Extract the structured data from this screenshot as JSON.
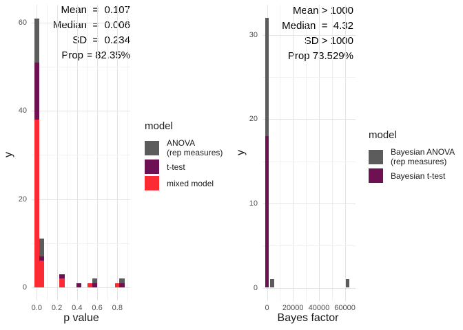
{
  "chart_data": [
    {
      "type": "bar",
      "subtype": "stacked-histogram",
      "title": "",
      "xlabel": "p value",
      "ylabel": "y",
      "grid": true,
      "legend_position": "right",
      "xlim": [
        -0.05,
        0.925
      ],
      "ylim": [
        -3.2,
        64
      ],
      "x_ticks": {
        "values": [
          0,
          0.2,
          0.4,
          0.6,
          0.8
        ],
        "labels": [
          "0.0",
          "0.2",
          "0.4",
          "0.6",
          "0.8"
        ]
      },
      "y_ticks": {
        "values": [
          0,
          20,
          40,
          60
        ],
        "labels": [
          "0",
          "20",
          "40",
          "60"
        ]
      },
      "x_minor": [
        0.1,
        0.3,
        0.5,
        0.7,
        0.9
      ],
      "y_minor": [
        10,
        30,
        50
      ],
      "annotations": [
        "Mean  =  0.107",
        "Median  =  0.006",
        "SD  =  0.234",
        "Prop = 82.35%"
      ],
      "legend": {
        "title": "model",
        "items": [
          {
            "label": "ANOVA\n(rep measures)",
            "color": "#5c5c5c"
          },
          {
            "label": "t-test",
            "color": "#6d1152"
          },
          {
            "label": "mixed model",
            "color": "#fb2a33"
          }
        ]
      },
      "series": [
        {
          "name": "ANOVA (rep measures)",
          "color": "#5c5c5c"
        },
        {
          "name": "t-test",
          "color": "#6d1152"
        },
        {
          "name": "mixed model",
          "color": "#fb2a33"
        }
      ],
      "stack_order": [
        "mixed model",
        "t-test",
        "ANOVA (rep measures)"
      ],
      "bin_width": 0.05,
      "bars": [
        {
          "x": 0.0,
          "stack": {
            "mixed model": 38,
            "t-test": 13,
            "ANOVA (rep measures)": 10
          }
        },
        {
          "x": 0.05,
          "stack": {
            "mixed model": 6,
            "t-test": 1,
            "ANOVA (rep measures)": 4
          }
        },
        {
          "x": 0.25,
          "stack": {
            "mixed model": 2,
            "t-test": 1
          }
        },
        {
          "x": 0.42,
          "stack": {
            "t-test": 1
          }
        },
        {
          "x": 0.53,
          "stack": {
            "mixed model": 1
          }
        },
        {
          "x": 0.575,
          "stack": {
            "t-test": 1,
            "ANOVA (rep measures)": 1
          }
        },
        {
          "x": 0.8,
          "stack": {
            "mixed model": 1
          }
        },
        {
          "x": 0.845,
          "stack": {
            "t-test": 1,
            "ANOVA (rep measures)": 1
          }
        }
      ]
    },
    {
      "type": "bar",
      "subtype": "stacked-histogram",
      "title": "",
      "xlabel": "Bayes factor",
      "ylabel": "y",
      "grid": true,
      "legend_position": "right",
      "xlim": [
        -3200,
        65500
      ],
      "ylim": [
        -1.6,
        33.6
      ],
      "x_ticks": {
        "values": [
          0,
          20000,
          40000,
          60000
        ],
        "labels": [
          "0",
          "20000",
          "40000",
          "60000"
        ]
      },
      "y_ticks": {
        "values": [
          0,
          10,
          20,
          30
        ],
        "labels": [
          "0",
          "10",
          "20",
          "30"
        ]
      },
      "x_minor": [
        10000,
        30000,
        50000
      ],
      "y_minor": [
        5,
        15,
        25
      ],
      "annotations": [
        "Mean > 1000",
        "Median  =  4.32",
        "SD > 1000",
        "Prop 73.529%"
      ],
      "legend": {
        "title": "model",
        "items": [
          {
            "label": "Bayesian ANOVA\n(rep measures)",
            "color": "#5c5c5c"
          },
          {
            "label": "Bayesian t-test",
            "color": "#6d1152"
          }
        ]
      },
      "series": [
        {
          "name": "Bayesian ANOVA (rep measures)",
          "color": "#5c5c5c"
        },
        {
          "name": "Bayesian t-test",
          "color": "#6d1152"
        }
      ],
      "stack_order": [
        "Bayesian t-test",
        "Bayesian ANOVA (rep measures)"
      ],
      "bars": [
        {
          "x": 0,
          "stack": {
            "Bayesian t-test": 18,
            "Bayesian ANOVA (rep measures)": 14
          }
        },
        {
          "x": 4000,
          "stack": {
            "Bayesian ANOVA (rep measures)": 1
          }
        },
        {
          "x": 62000,
          "stack": {
            "Bayesian ANOVA (rep measures)": 1
          }
        }
      ]
    }
  ]
}
